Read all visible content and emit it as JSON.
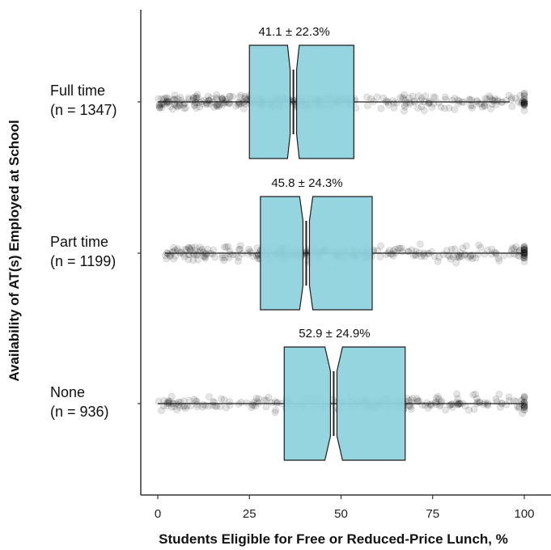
{
  "chart_data": {
    "type": "box",
    "orientation": "horizontal",
    "title": "",
    "xlabel": "Students Eligible for Free or Reduced-Price Lunch, %",
    "ylabel": "Availability of AT(s) Employed at School",
    "xlim": [
      0,
      100
    ],
    "xticks": [
      0,
      25,
      50,
      75,
      100
    ],
    "grid": false,
    "jitter_points": true,
    "notched": true,
    "colors": {
      "box_fill": "#8fd3dd",
      "box_stroke": "#1e1e1e",
      "points": "#000000",
      "axis": "#333333"
    },
    "categories": [
      {
        "label_line1": "Full time",
        "label_line2": "(n = 1347)",
        "n": 1347,
        "annotation": "41.1 ± 22.3%",
        "whisker_low": 0,
        "q1": 25,
        "median": 37,
        "q3": 53.5,
        "whisker_high": 96,
        "notch_low": 35.4,
        "notch_high": 38.6
      },
      {
        "label_line1": "Part time",
        "label_line2": "(n = 1199)",
        "n": 1199,
        "annotation": "45.8 ± 24.3%",
        "whisker_low": 2,
        "q1": 28,
        "median": 40.5,
        "q3": 58.5,
        "whisker_high": 100,
        "notch_low": 38.7,
        "notch_high": 42.3
      },
      {
        "label_line1": "None",
        "label_line2": "(n = 936)",
        "n": 936,
        "annotation": "52.9 ± 24.9%",
        "whisker_low": 0,
        "q1": 34.5,
        "median": 48,
        "q3": 67.5,
        "whisker_high": 100,
        "notch_low": 45.6,
        "notch_high": 50.4
      }
    ]
  }
}
